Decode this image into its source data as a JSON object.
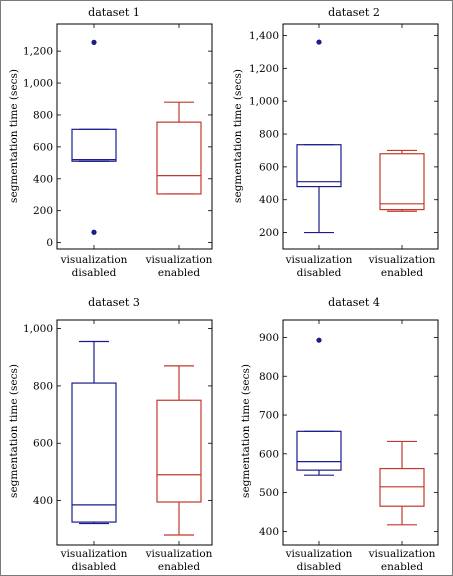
{
  "chart_data": [
    {
      "type": "box",
      "title": "dataset 1",
      "ylabel": "segmentation time (secs)",
      "categories": [
        [
          "visualization",
          "disabled"
        ],
        [
          "visualization",
          "enabled"
        ]
      ],
      "yticks": [
        0,
        200,
        400,
        600,
        800,
        1000,
        1200
      ],
      "ytick_labels": [
        "0",
        "200",
        "400",
        "600",
        "800",
        "1,000",
        "1,200"
      ],
      "ylim": [
        -40,
        1370
      ],
      "boxes": [
        {
          "whisker_low": 510,
          "q1": 510,
          "median": 520,
          "q3": 710,
          "whisker_high": 710,
          "outliers": [
            1255,
            65
          ],
          "color": "#1c1c8c"
        },
        {
          "whisker_low": 305,
          "q1": 305,
          "median": 420,
          "q3": 755,
          "whisker_high": 880,
          "outliers": [],
          "color": "#c0392b"
        }
      ]
    },
    {
      "type": "box",
      "title": "dataset 2",
      "ylabel": "segmentation time (secs)",
      "categories": [
        [
          "visualization",
          "disabled"
        ],
        [
          "visualization",
          "enabled"
        ]
      ],
      "yticks": [
        200,
        400,
        600,
        800,
        1000,
        1200,
        1400
      ],
      "ytick_labels": [
        "200",
        "400",
        "600",
        "800",
        "1,000",
        "1,200",
        "1,400"
      ],
      "ylim": [
        100,
        1470
      ],
      "boxes": [
        {
          "whisker_low": 200,
          "q1": 480,
          "median": 510,
          "q3": 735,
          "whisker_high": 735,
          "outliers": [
            1360
          ],
          "color": "#1c1c8c"
        },
        {
          "whisker_low": 330,
          "q1": 340,
          "median": 375,
          "q3": 680,
          "whisker_high": 700,
          "outliers": [],
          "color": "#c0392b"
        }
      ]
    },
    {
      "type": "box",
      "title": "dataset 3",
      "ylabel": "segmentation time (secs)",
      "categories": [
        [
          "visualization",
          "disabled"
        ],
        [
          "visualization",
          "enabled"
        ]
      ],
      "yticks": [
        400,
        600,
        800,
        1000
      ],
      "ytick_labels": [
        "400",
        "600",
        "800",
        "1,000"
      ],
      "ylim": [
        245,
        1030
      ],
      "boxes": [
        {
          "whisker_low": 320,
          "q1": 325,
          "median": 385,
          "q3": 810,
          "whisker_high": 955,
          "outliers": [],
          "color": "#1c1c8c"
        },
        {
          "whisker_low": 280,
          "q1": 395,
          "median": 490,
          "q3": 750,
          "whisker_high": 870,
          "outliers": [],
          "color": "#c0392b"
        }
      ]
    },
    {
      "type": "box",
      "title": "dataset 4",
      "ylabel": "segmentation time (secs)",
      "categories": [
        [
          "visualization",
          "disabled"
        ],
        [
          "visualization",
          "enabled"
        ]
      ],
      "yticks": [
        400,
        500,
        600,
        700,
        800,
        900
      ],
      "ytick_labels": [
        "400",
        "500",
        "600",
        "700",
        "800",
        "900"
      ],
      "ylim": [
        365,
        945
      ],
      "boxes": [
        {
          "whisker_low": 545,
          "q1": 558,
          "median": 580,
          "q3": 658,
          "whisker_high": 658,
          "outliers": [
            893
          ],
          "color": "#1c1c8c"
        },
        {
          "whisker_low": 417,
          "q1": 465,
          "median": 515,
          "q3": 562,
          "whisker_high": 632,
          "outliers": [],
          "color": "#c0392b"
        }
      ]
    }
  ]
}
